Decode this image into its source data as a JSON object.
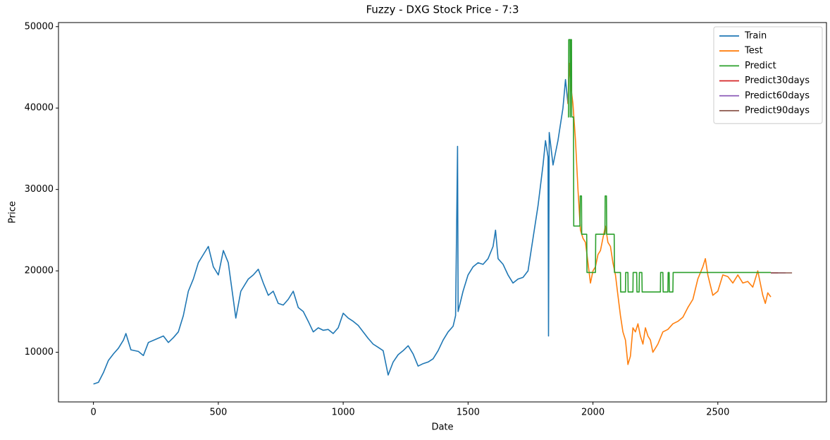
{
  "chart_data": {
    "type": "line",
    "title": "Fuzzy - DXG Stock Price - 7:3",
    "x_label": "Date",
    "y_label": "Price",
    "xlim": [
      -140,
      2935
    ],
    "ylim": [
      3900,
      50500
    ],
    "xticks": [
      0,
      500,
      1000,
      1500,
      2000,
      2500
    ],
    "yticks": [
      10000,
      20000,
      30000,
      40000,
      50000
    ],
    "grid": false,
    "legend": "upper right",
    "series": [
      {
        "name": "Train",
        "color": "#1f77b4",
        "x": [
          0,
          20,
          40,
          60,
          80,
          100,
          120,
          130,
          150,
          180,
          200,
          220,
          250,
          280,
          300,
          320,
          340,
          360,
          380,
          400,
          420,
          440,
          460,
          480,
          500,
          520,
          540,
          560,
          570,
          590,
          620,
          640,
          660,
          680,
          700,
          720,
          740,
          760,
          780,
          800,
          820,
          840,
          860,
          880,
          900,
          920,
          940,
          960,
          980,
          1000,
          1020,
          1040,
          1060,
          1080,
          1100,
          1120,
          1140,
          1160,
          1180,
          1200,
          1220,
          1240,
          1260,
          1280,
          1300,
          1320,
          1340,
          1360,
          1380,
          1400,
          1420,
          1440,
          1450,
          1458,
          1460,
          1480,
          1500,
          1520,
          1540,
          1560,
          1580,
          1600,
          1610,
          1620,
          1640,
          1660,
          1680,
          1700,
          1720,
          1740,
          1760,
          1780,
          1800,
          1810,
          1820,
          1822,
          1825,
          1840,
          1860,
          1880,
          1890,
          1900
        ],
        "values": [
          6100,
          6300,
          7500,
          9000,
          9800,
          10500,
          11500,
          12300,
          10300,
          10100,
          9600,
          11200,
          11600,
          12000,
          11200,
          11800,
          12500,
          14500,
          17500,
          19000,
          21000,
          22000,
          23000,
          20500,
          19500,
          22500,
          21000,
          16500,
          14200,
          17500,
          19000,
          19500,
          20200,
          18500,
          17000,
          17500,
          16000,
          15800,
          16500,
          17500,
          15500,
          15000,
          13800,
          12500,
          13000,
          12700,
          12800,
          12300,
          13000,
          14800,
          14200,
          13800,
          13300,
          12500,
          11700,
          11000,
          10600,
          10200,
          7200,
          8800,
          9700,
          10200,
          10800,
          9800,
          8300,
          8600,
          8800,
          9200,
          10200,
          11500,
          12500,
          13200,
          14500,
          35300,
          15000,
          17500,
          19500,
          20500,
          21000,
          20800,
          21500,
          23000,
          25000,
          21500,
          20800,
          19500,
          18500,
          19000,
          19200,
          20000,
          24000,
          28000,
          33000,
          36000,
          34000,
          12000,
          37000,
          33000,
          36000,
          40000,
          43500,
          40500
        ]
      },
      {
        "name": "Test",
        "color": "#ff7f0e",
        "x": [
          1900,
          1905,
          1910,
          1920,
          1930,
          1940,
          1950,
          1960,
          1970,
          1980,
          1990,
          2000,
          2010,
          2020,
          2030,
          2040,
          2050,
          2060,
          2070,
          2080,
          2090,
          2100,
          2110,
          2120,
          2130,
          2140,
          2150,
          2160,
          2170,
          2180,
          2190,
          2200,
          2210,
          2220,
          2230,
          2240,
          2250,
          2260,
          2280,
          2300,
          2320,
          2340,
          2360,
          2380,
          2400,
          2420,
          2440,
          2450,
          2460,
          2480,
          2500,
          2520,
          2540,
          2560,
          2580,
          2600,
          2620,
          2640,
          2660,
          2680,
          2690,
          2700,
          2712
        ],
        "values": [
          40500,
          45500,
          43000,
          40500,
          36000,
          30000,
          25000,
          24000,
          23500,
          21000,
          18500,
          20000,
          20500,
          22000,
          22500,
          24000,
          25500,
          23500,
          23000,
          21000,
          19500,
          17000,
          14500,
          12500,
          11500,
          8500,
          9500,
          13000,
          12500,
          13500,
          12000,
          11000,
          13000,
          12000,
          11500,
          10000,
          10500,
          11000,
          12500,
          12800,
          13500,
          13800,
          14300,
          15500,
          16500,
          19000,
          20500,
          21500,
          19500,
          17000,
          17500,
          19500,
          19300,
          18500,
          19500,
          18500,
          18700,
          18000,
          20000,
          17000,
          16000,
          17300,
          16800
        ]
      },
      {
        "name": "Predict",
        "color": "#2ca02c",
        "x": [
          1900,
          1902,
          1903,
          1908,
          1909,
          1911,
          1914,
          1915,
          1922,
          1923,
          1948,
          1949,
          1954,
          1955,
          1975,
          1976,
          2010,
          2011,
          2048,
          2049,
          2054,
          2055,
          2085,
          2086,
          2110,
          2111,
          2130,
          2131,
          2140,
          2141,
          2160,
          2161,
          2175,
          2176,
          2185,
          2186,
          2196,
          2197,
          2270,
          2271,
          2280,
          2281,
          2300,
          2301,
          2305,
          2306,
          2320,
          2321,
          2712
        ],
        "values": [
          38900,
          38900,
          48400,
          48400,
          38900,
          48400,
          48400,
          38900,
          38900,
          25500,
          25500,
          29200,
          29200,
          24500,
          24500,
          19800,
          19800,
          24500,
          24500,
          29200,
          29200,
          24500,
          24500,
          19800,
          19800,
          17400,
          17400,
          19800,
          19800,
          17400,
          17400,
          19800,
          19800,
          17400,
          17400,
          19800,
          19800,
          17400,
          17400,
          19800,
          19800,
          17400,
          17400,
          19800,
          19800,
          17400,
          17400,
          19800,
          19800
        ]
      },
      {
        "name": "Predict30days",
        "color": "#d62728",
        "x": [
          2712,
          2741
        ],
        "values": [
          19750,
          19750
        ]
      },
      {
        "name": "Predict60days",
        "color": "#9467bd",
        "x": [
          2712,
          2771
        ],
        "values": [
          19750,
          19750
        ]
      },
      {
        "name": "Predict90days",
        "color": "#8c564b",
        "x": [
          2712,
          2797
        ],
        "values": [
          19750,
          19750
        ]
      }
    ]
  }
}
